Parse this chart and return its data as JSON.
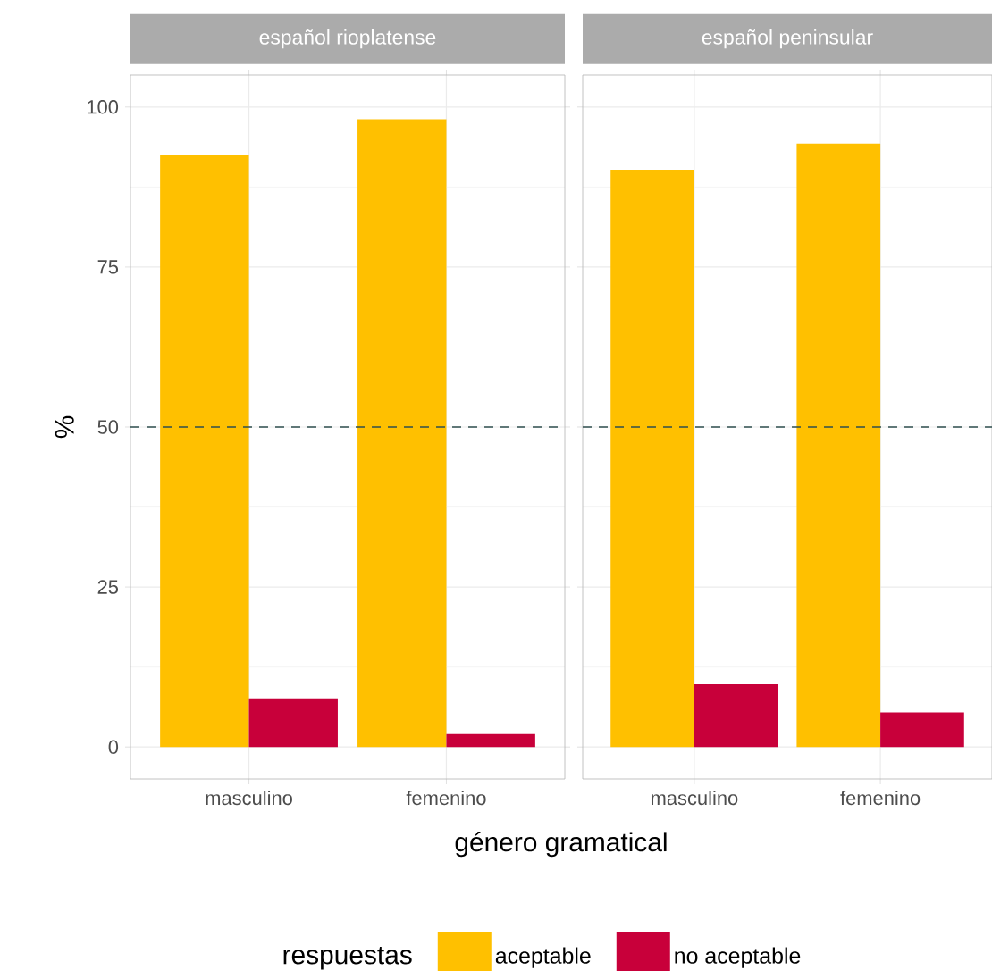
{
  "chart_data": [
    {
      "type": "bar",
      "title": "español rioplatense",
      "xlabel": "género gramatical",
      "ylabel": "%",
      "legend_title": "respuestas",
      "categories": [
        "masculino",
        "femenino"
      ],
      "series": [
        {
          "name": "aceptable",
          "color": "#ffc000",
          "values": [
            92.5,
            98.1
          ]
        },
        {
          "name": "no aceptable",
          "color": "#c8003a",
          "values": [
            7.6,
            2.0
          ]
        }
      ],
      "ylim": [
        -5,
        105
      ],
      "yticks": [
        0,
        25,
        50,
        75,
        100
      ],
      "grid": true,
      "legend": "bottom",
      "ref_lines": [
        {
          "axis": "y",
          "value": 50,
          "color": "#2f4f4f",
          "line_style": "dashed"
        }
      ]
    },
    {
      "type": "bar",
      "title": "español peninsular",
      "categories": [
        "masculino",
        "femenino"
      ],
      "series": [
        {
          "color": "#ffc000",
          "values": [
            90.2,
            94.3
          ]
        },
        {
          "color": "#c8003a",
          "values": [
            9.8,
            5.4
          ]
        }
      ],
      "ylim": [
        -5,
        105
      ],
      "yticks": [
        0,
        25,
        50,
        75,
        100
      ],
      "grid": true,
      "tick_labels": "x",
      "ref_lines": [
        {
          "axis": "y",
          "value": 50,
          "color": "#2f4f4f",
          "line_style": "dashed"
        }
      ]
    }
  ]
}
